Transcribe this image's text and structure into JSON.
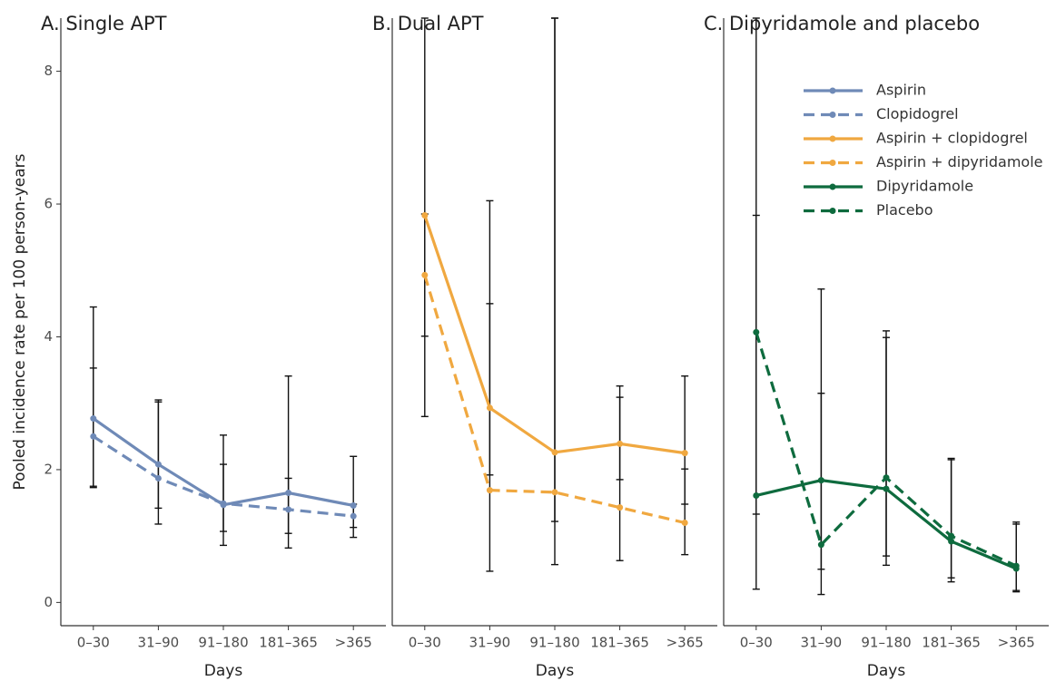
{
  "chart_data": [
    {
      "type": "line",
      "title": "A. Single APT",
      "xlabel": "Days",
      "ylabel": "Pooled incidence rate per 100 person-years",
      "categories": [
        "0–30",
        "31–90",
        "91–180",
        "181–365",
        ">365"
      ],
      "ylim": [
        -0.35,
        8.8
      ],
      "yticks": [
        0,
        2,
        4,
        6,
        8
      ],
      "series": [
        {
          "name": "Aspirin",
          "color": "#6f8ab7",
          "dash": "solid",
          "values": [
            2.77,
            2.08,
            1.47,
            1.65,
            1.46
          ],
          "lower": [
            1.75,
            1.42,
            0.86,
            0.82,
            1.13
          ],
          "upper": [
            4.45,
            3.05,
            2.52,
            3.41,
            2.2
          ]
        },
        {
          "name": "Clopidogrel",
          "color": "#6f8ab7",
          "dash": "dashed",
          "values": [
            2.5,
            1.87,
            1.49,
            1.4,
            1.3
          ],
          "lower": [
            1.73,
            1.18,
            1.07,
            1.04,
            0.98
          ],
          "upper": [
            3.53,
            3.02,
            2.08,
            1.87,
            1.48
          ]
        }
      ]
    },
    {
      "type": "line",
      "title": "B. Dual APT",
      "xlabel": "Days",
      "categories": [
        "0–30",
        "31–90",
        "91–180",
        "181–365",
        ">365"
      ],
      "ylim": [
        -0.35,
        8.8
      ],
      "series": [
        {
          "name": "Aspirin + clopidogrel",
          "color": "#f0a840",
          "dash": "solid",
          "values": [
            5.83,
            2.93,
            2.26,
            2.39,
            2.25
          ],
          "lower": [
            2.8,
            1.92,
            1.22,
            1.85,
            1.48
          ],
          "upper": [
            8.8,
            4.5,
            8.8,
            3.26,
            3.41
          ]
        },
        {
          "name": "Aspirin + dipyridamole",
          "color": "#f0a840",
          "dash": "dashed",
          "values": [
            4.93,
            1.69,
            1.66,
            1.43,
            1.2
          ],
          "lower": [
            4.01,
            0.47,
            0.57,
            0.63,
            0.72
          ],
          "upper": [
            5.85,
            6.05,
            8.8,
            3.09,
            2.01
          ]
        }
      ]
    },
    {
      "type": "line",
      "title": "C. Dipyridamole and placebo",
      "xlabel": "Days",
      "legend": "top-right",
      "categories": [
        "0–30",
        "31–90",
        "91–180",
        "181–365",
        ">365"
      ],
      "ylim": [
        -0.35,
        8.8
      ],
      "series": [
        {
          "name": "Dipyridamole",
          "color": "#0e6b3e",
          "dash": "solid",
          "values": [
            1.61,
            1.84,
            1.71,
            0.92,
            0.51
          ],
          "lower": [
            1.33,
            0.5,
            0.7,
            0.31,
            0.16
          ],
          "upper": [
            5.83,
            4.72,
            3.99,
            2.15,
            1.18
          ]
        },
        {
          "name": "Placebo",
          "color": "#0e6b3e",
          "dash": "dashed",
          "values": [
            4.07,
            0.87,
            1.88,
            1.0,
            0.55
          ],
          "lower": [
            0.2,
            0.12,
            0.56,
            0.37,
            0.18
          ],
          "upper": [
            8.8,
            3.15,
            4.09,
            2.17,
            1.21
          ]
        }
      ]
    }
  ]
}
